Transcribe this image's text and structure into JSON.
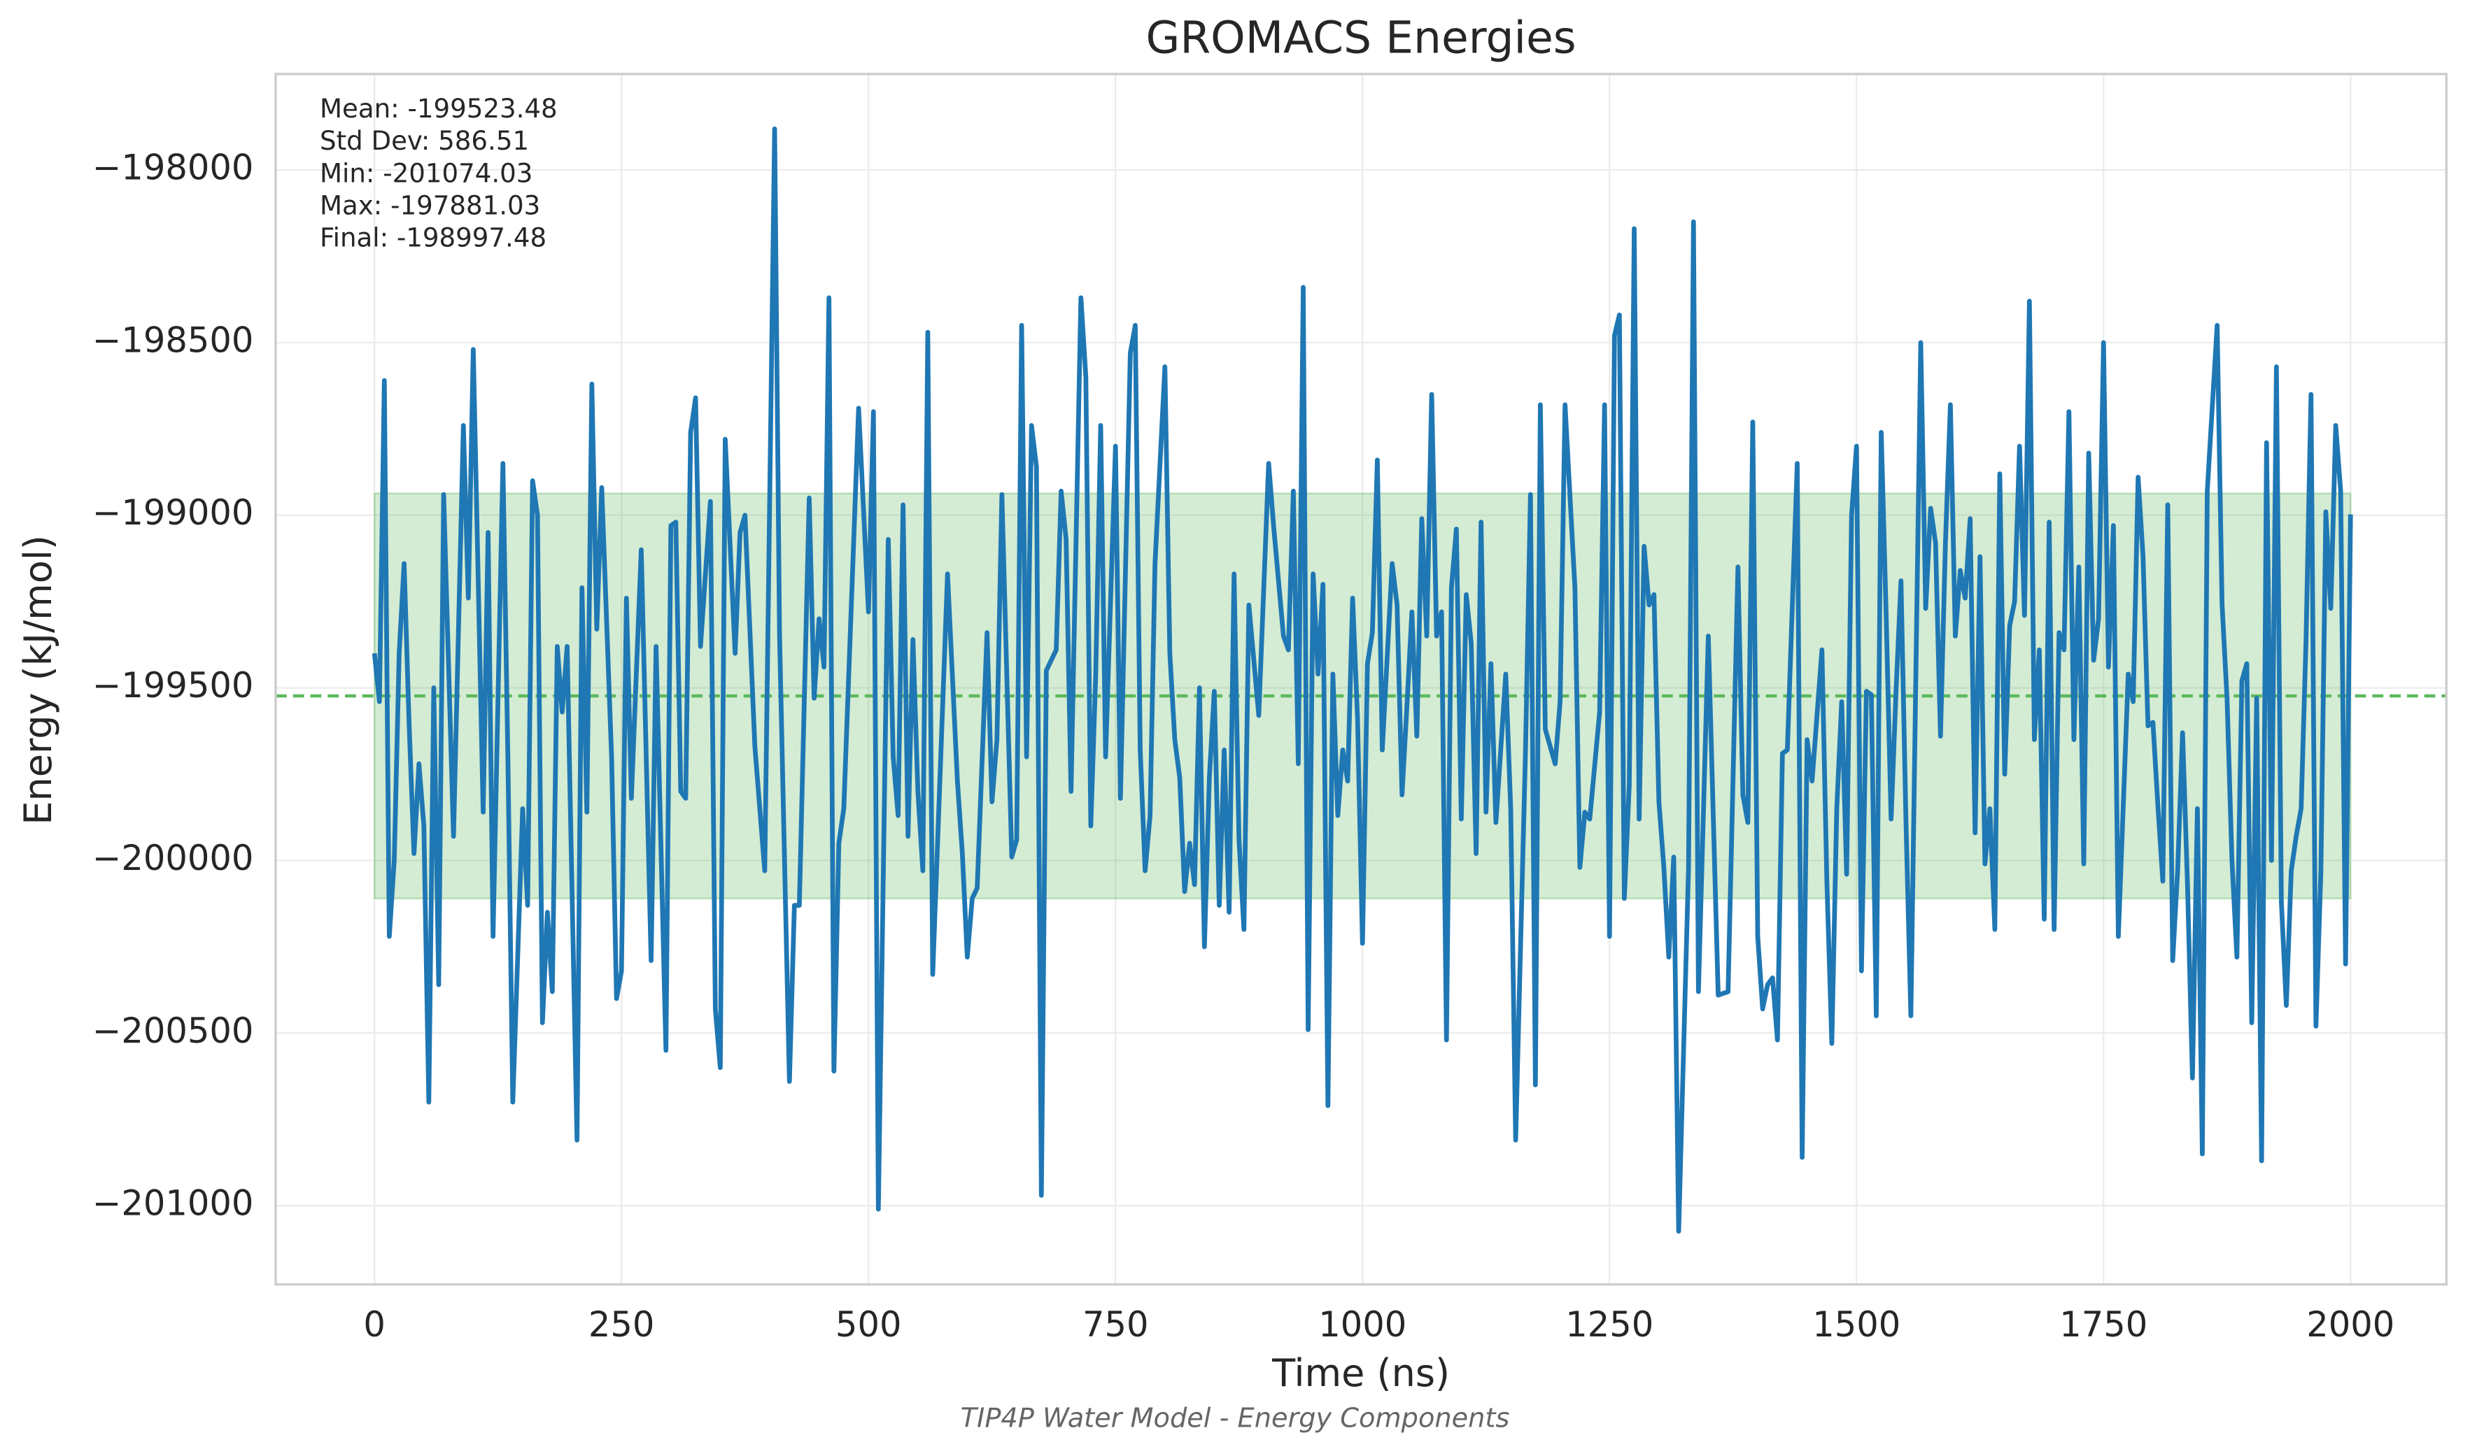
{
  "chart_data": {
    "type": "line",
    "title": "GROMACS Energies",
    "subtitle": "TIP4P Water Model - Energy Components",
    "xlabel": "Time (ns)",
    "ylabel": "Energy (kJ/mol)",
    "color": "#1f77b4",
    "stats_color": "#5cb85c",
    "grid": true,
    "xlim": [
      -100,
      2097
    ],
    "ylim": [
      -197722,
      -201228
    ],
    "xticks": [
      0,
      250,
      500,
      750,
      1000,
      1250,
      1500,
      1750,
      2000
    ],
    "yticks": [
      {
        "value": -198000,
        "label": "−198000"
      },
      {
        "value": -198500,
        "label": "−198500"
      },
      {
        "value": -199000,
        "label": "−199000"
      },
      {
        "value": -199500,
        "label": "−199500"
      },
      {
        "value": -200000,
        "label": "−200000"
      },
      {
        "value": -200500,
        "label": "−200500"
      },
      {
        "value": -201000,
        "label": "−201000"
      }
    ],
    "stats": [
      {
        "label": "Mean: -199523.48",
        "value": -199523.48
      },
      {
        "label": "Std Dev: 586.51",
        "value": 586.51
      },
      {
        "label": "Min: -201074.03",
        "value": -201074.03
      },
      {
        "label": "Max: -197881.03",
        "value": -197881.03
      },
      {
        "label": "Final: -198997.48",
        "value": -198997.48
      }
    ],
    "x": [
      0,
      5,
      10,
      15,
      20,
      25,
      30,
      35,
      40,
      45,
      50,
      55,
      60,
      65,
      70,
      80,
      90,
      95,
      100,
      110,
      115,
      120,
      130,
      135,
      140,
      150,
      155,
      160,
      165,
      170,
      175,
      180,
      185,
      190,
      195,
      205,
      210,
      215,
      220,
      225,
      230,
      240,
      245,
      250,
      255,
      260,
      270,
      280,
      285,
      295,
      300,
      305,
      310,
      315,
      320,
      325,
      330,
      340,
      345,
      350,
      355,
      365,
      370,
      375,
      385,
      395,
      405,
      410,
      420,
      425,
      430,
      440,
      445,
      450,
      455,
      460,
      465,
      470,
      475,
      490,
      500,
      505,
      510,
      520,
      525,
      530,
      535,
      540,
      545,
      550,
      555,
      560,
      565,
      580,
      590,
      595,
      600,
      605,
      610,
      620,
      625,
      630,
      635,
      645,
      650,
      655,
      660,
      665,
      670,
      675,
      680,
      690,
      695,
      700,
      705,
      715,
      720,
      725,
      730,
      735,
      740,
      750,
      755,
      765,
      770,
      775,
      780,
      785,
      790,
      800,
      805,
      810,
      815,
      820,
      825,
      830,
      835,
      840,
      845,
      850,
      855,
      860,
      865,
      870,
      875,
      880,
      885,
      895,
      905,
      910,
      920,
      925,
      930,
      935,
      940,
      945,
      950,
      955,
      960,
      965,
      970,
      975,
      980,
      985,
      990,
      995,
      1000,
      1005,
      1010,
      1015,
      1020,
      1030,
      1035,
      1040,
      1045,
      1050,
      1055,
      1060,
      1065,
      1070,
      1075,
      1080,
      1085,
      1090,
      1095,
      1100,
      1105,
      1110,
      1115,
      1120,
      1125,
      1130,
      1135,
      1145,
      1150,
      1155,
      1165,
      1170,
      1175,
      1180,
      1185,
      1195,
      1200,
      1205,
      1215,
      1220,
      1225,
      1230,
      1240,
      1245,
      1250,
      1255,
      1260,
      1265,
      1270,
      1275,
      1280,
      1285,
      1290,
      1295,
      1300,
      1305,
      1310,
      1315,
      1320,
      1330,
      1335,
      1340,
      1350,
      1360,
      1370,
      1380,
      1385,
      1390,
      1395,
      1400,
      1405,
      1410,
      1415,
      1420,
      1425,
      1430,
      1440,
      1445,
      1450,
      1455,
      1465,
      1470,
      1475,
      1480,
      1485,
      1490,
      1495,
      1500,
      1505,
      1510,
      1515,
      1520,
      1525,
      1530,
      1535,
      1540,
      1545,
      1550,
      1555,
      1565,
      1570,
      1575,
      1580,
      1585,
      1590,
      1595,
      1600,
      1605,
      1610,
      1615,
      1620,
      1625,
      1630,
      1635,
      1640,
      1645,
      1650,
      1655,
      1660,
      1665,
      1670,
      1675,
      1680,
      1685,
      1690,
      1695,
      1700,
      1705,
      1710,
      1715,
      1720,
      1725,
      1730,
      1735,
      1740,
      1745,
      1750,
      1755,
      1760,
      1765,
      1775,
      1780,
      1785,
      1790,
      1795,
      1800,
      1805,
      1810,
      1815,
      1820,
      1825,
      1830,
      1835,
      1840,
      1845,
      1850,
      1855,
      1865,
      1870,
      1875,
      1880,
      1885,
      1890,
      1895,
      1900,
      1905,
      1910,
      1915,
      1920,
      1925,
      1930,
      1935,
      1940,
      1945,
      1950,
      1955,
      1960,
      1965,
      1970,
      1975,
      1980,
      1985,
      1990,
      1995,
      2000
    ],
    "values": [
      -199400,
      -199540,
      -198610,
      -200220,
      -200000,
      -199400,
      -199140,
      -199600,
      -199980,
      -199720,
      -199900,
      -200700,
      -199500,
      -200360,
      -198940,
      -199930,
      -198740,
      -199240,
      -198520,
      -199860,
      -199050,
      -200220,
      -198850,
      -199700,
      -200700,
      -199850,
      -200130,
      -198900,
      -199000,
      -200470,
      -200150,
      -200380,
      -199380,
      -199570,
      -199380,
      -200810,
      -199210,
      -199860,
      -198620,
      -199330,
      -198920,
      -199700,
      -200400,
      -200320,
      -199240,
      -199820,
      -199100,
      -200290,
      -199380,
      -200550,
      -199030,
      -199020,
      -199800,
      -199820,
      -198760,
      -198660,
      -199380,
      -198960,
      -200430,
      -200600,
      -198780,
      -199400,
      -199050,
      -199000,
      -199670,
      -200030,
      -197881.03,
      -199350,
      -200640,
      -200130,
      -200130,
      -198950,
      -199530,
      -199300,
      -199440,
      -198370,
      -200610,
      -199950,
      -199850,
      -198690,
      -199280,
      -198700,
      -201010,
      -199070,
      -199700,
      -199870,
      -198970,
      -199930,
      -199360,
      -199800,
      -200030,
      -198470,
      -200330,
      -199170,
      -199770,
      -199980,
      -200280,
      -200110,
      -200080,
      -199340,
      -199830,
      -199650,
      -198940,
      -199990,
      -199940,
      -198450,
      -199700,
      -198740,
      -198860,
      -200970,
      -199450,
      -199390,
      -198930,
      -199070,
      -199800,
      -198370,
      -198600,
      -199900,
      -199460,
      -198740,
      -199700,
      -198800,
      -199820,
      -198530,
      -198450,
      -199680,
      -200030,
      -199870,
      -199140,
      -198570,
      -199400,
      -199650,
      -199760,
      -200090,
      -199950,
      -200070,
      -199500,
      -200250,
      -199760,
      -199510,
      -200130,
      -199680,
      -200150,
      -199170,
      -199940,
      -200200,
      -199260,
      -199580,
      -198850,
      -199030,
      -199350,
      -199390,
      -198930,
      -199720,
      -198340,
      -200490,
      -199170,
      -199460,
      -199200,
      -200710,
      -199460,
      -199870,
      -199680,
      -199770,
      -199240,
      -199590,
      -200240,
      -199430,
      -199340,
      -198840,
      -199680,
      -199140,
      -199260,
      -199810,
      -199550,
      -199280,
      -199640,
      -199010,
      -199350,
      -198650,
      -199350,
      -199280,
      -200520,
      -199210,
      -199040,
      -199880,
      -199230,
      -199370,
      -199980,
      -199020,
      -199860,
      -199430,
      -199890,
      -199460,
      -199850,
      -200810,
      -199680,
      -198940,
      -200650,
      -198680,
      -199620,
      -199720,
      -199540,
      -198680,
      -199210,
      -200020,
      -199860,
      -199880,
      -199570,
      -198680,
      -200220,
      -198480,
      -198420,
      -200110,
      -199780,
      -198170,
      -199880,
      -199090,
      -199260,
      -199230,
      -199830,
      -200020,
      -200280,
      -199990,
      -201074.03,
      -200020,
      -198150,
      -200380,
      -199350,
      -200390,
      -200380,
      -199150,
      -199810,
      -199890,
      -198730,
      -200220,
      -200430,
      -200360,
      -200340,
      -200520,
      -199690,
      -199680,
      -198850,
      -200860,
      -199650,
      -199770,
      -199390,
      -200060,
      -200530,
      -199850,
      -199540,
      -200040,
      -199000,
      -198800,
      -200320,
      -199510,
      -199520,
      -200450,
      -198760,
      -199290,
      -199880,
      -199510,
      -199190,
      -199880,
      -200450,
      -198500,
      -199270,
      -198980,
      -199080,
      -199640,
      -199080,
      -198680,
      -199350,
      -199160,
      -199240,
      -199010,
      -199920,
      -199120,
      -200010,
      -199850,
      -200200,
      -198880,
      -199750,
      -199320,
      -199250,
      -198800,
      -199290,
      -198380,
      -199650,
      -199390,
      -200170,
      -199020,
      -200200,
      -199340,
      -199390,
      -198700,
      -199650,
      -199150,
      -200010,
      -198820,
      -199420,
      -199300,
      -198500,
      -199440,
      -199030,
      -200220,
      -199460,
      -199540,
      -198890,
      -199120,
      -199610,
      -199600,
      -199840,
      -200060,
      -198970,
      -200290,
      -200030,
      -199630,
      -200070,
      -200630,
      -199850,
      -200850,
      -198930,
      -198450,
      -199260,
      -199530,
      -200000,
      -200280,
      -199480,
      -199430,
      -200470,
      -199530,
      -200870,
      -198790,
      -200000,
      -198570,
      -200120,
      -200420,
      -200030,
      -199930,
      -199850,
      -199360,
      -198650,
      -200480,
      -200030,
      -198990,
      -199270,
      -198740,
      -198930,
      -200300,
      -198997.48
    ]
  }
}
